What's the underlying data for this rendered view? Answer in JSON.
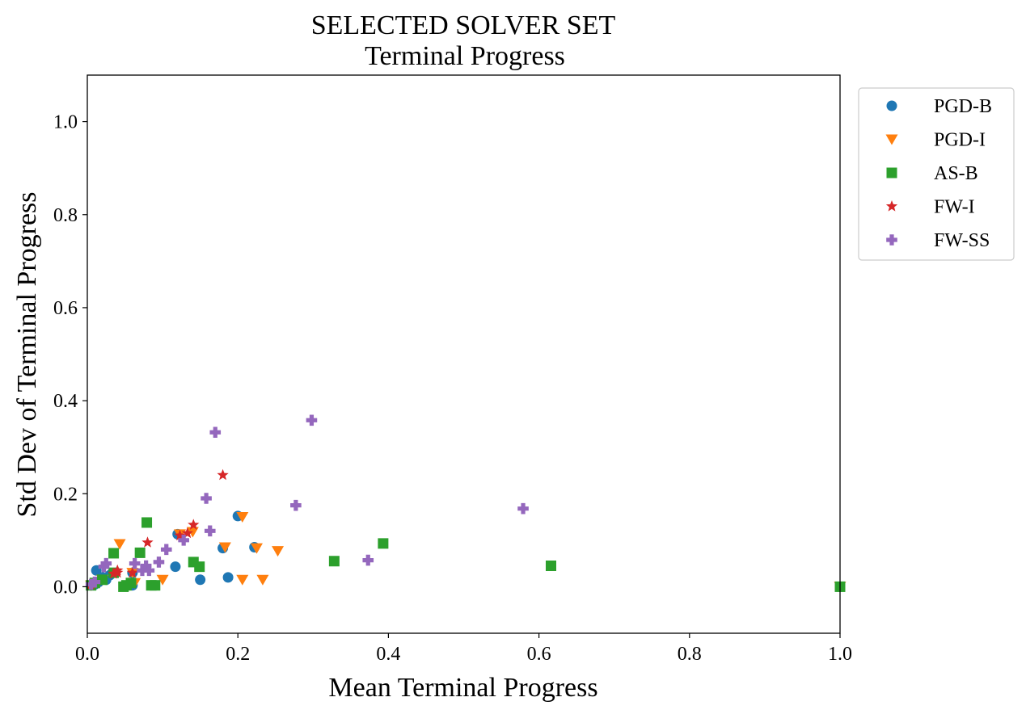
{
  "chart_data": {
    "type": "scatter",
    "title": "SELECTED SOLVER SET",
    "subtitle": "Terminal Progress",
    "xlabel": "Mean Terminal Progress",
    "ylabel": "Std Dev of Terminal Progress",
    "xlim": [
      0,
      1
    ],
    "ylim": [
      -0.1,
      1.1
    ],
    "xticks": [
      "0.0",
      "0.2",
      "0.4",
      "0.6",
      "0.8",
      "1.0"
    ],
    "yticks": [
      "0.0",
      "0.2",
      "0.4",
      "0.6",
      "0.8",
      "1.0"
    ],
    "grid": false,
    "legend_position": "outside-right-top",
    "series": [
      {
        "name": "PGD-B",
        "color": "#1f77b4",
        "marker": "circle",
        "x": [
          0.005,
          0.01,
          0.012,
          0.015,
          0.02,
          0.025,
          0.03,
          0.06,
          0.06,
          0.117,
          0.12,
          0.15,
          0.18,
          0.187,
          0.2,
          0.222,
          1.0
        ],
        "y": [
          0.003,
          0.005,
          0.035,
          0.01,
          0.02,
          0.015,
          0.025,
          0.03,
          0.003,
          0.043,
          0.113,
          0.015,
          0.083,
          0.02,
          0.152,
          0.085,
          0.0
        ]
      },
      {
        "name": "PGD-I",
        "color": "#ff7f0e",
        "marker": "triangle-down",
        "x": [
          0.005,
          0.02,
          0.043,
          0.06,
          0.063,
          0.1,
          0.123,
          0.14,
          0.183,
          0.206,
          0.206,
          0.225,
          0.233,
          0.253,
          1.0
        ],
        "y": [
          0.003,
          0.015,
          0.092,
          0.03,
          0.008,
          0.015,
          0.113,
          0.118,
          0.085,
          0.15,
          0.015,
          0.083,
          0.015,
          0.077,
          0.0
        ]
      },
      {
        "name": "AS-B",
        "color": "#2ca02c",
        "marker": "square",
        "x": [
          0.005,
          0.01,
          0.02,
          0.035,
          0.035,
          0.048,
          0.052,
          0.058,
          0.07,
          0.079,
          0.085,
          0.09,
          0.141,
          0.149,
          0.328,
          0.393,
          0.616,
          1.0
        ],
        "y": [
          0.003,
          0.008,
          0.015,
          0.03,
          0.072,
          0.0,
          0.003,
          0.008,
          0.073,
          0.138,
          0.003,
          0.003,
          0.053,
          0.043,
          0.055,
          0.093,
          0.045,
          0.0
        ]
      },
      {
        "name": "FW-I",
        "color": "#d62728",
        "marker": "star",
        "x": [
          0.005,
          0.035,
          0.04,
          0.04,
          0.06,
          0.08,
          0.123,
          0.133,
          0.141,
          0.18
        ],
        "y": [
          0.005,
          0.028,
          0.035,
          0.03,
          0.03,
          0.095,
          0.11,
          0.115,
          0.133,
          0.24
        ]
      },
      {
        "name": "FW-SS",
        "color": "#9467bd",
        "marker": "plus",
        "x": [
          0.005,
          0.01,
          0.022,
          0.025,
          0.063,
          0.073,
          0.078,
          0.082,
          0.095,
          0.105,
          0.128,
          0.158,
          0.163,
          0.17,
          0.277,
          0.298,
          0.373,
          0.579
        ],
        "y": [
          0.005,
          0.01,
          0.043,
          0.05,
          0.05,
          0.035,
          0.045,
          0.035,
          0.053,
          0.08,
          0.1,
          0.19,
          0.12,
          0.332,
          0.175,
          0.358,
          0.057,
          0.168
        ]
      }
    ]
  }
}
